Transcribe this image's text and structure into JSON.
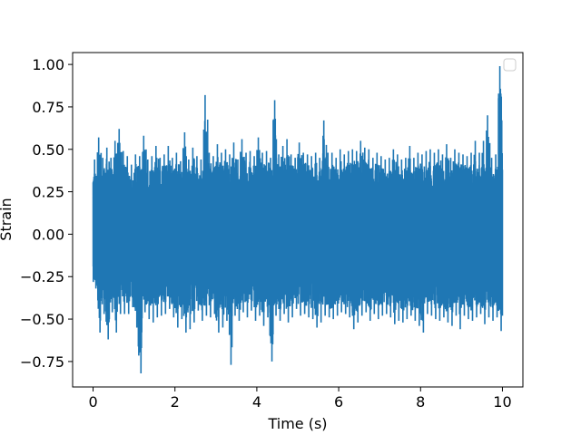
{
  "chart_data": {
    "type": "line",
    "title": "",
    "xlabel": "Time (s)",
    "ylabel": "Strain",
    "xlim": [
      -0.5,
      10.5
    ],
    "ylim": [
      -0.9,
      1.07
    ],
    "xticks": [
      0,
      2,
      4,
      6,
      8,
      10
    ],
    "xtick_labels": [
      "0",
      "2",
      "4",
      "6",
      "8",
      "10"
    ],
    "yticks": [
      -0.75,
      -0.5,
      -0.25,
      0.0,
      0.25,
      0.5,
      0.75,
      1.0
    ],
    "ytick_labels": [
      "−0.75",
      "−0.50",
      "−0.25",
      "0.00",
      "0.25",
      "0.50",
      "0.75",
      "1.00"
    ],
    "grid": false,
    "legend": {
      "placement": "upper right",
      "entries": []
    },
    "colors": {
      "series": "#1f77b4",
      "axes": "#000000",
      "background": "#ffffff"
    },
    "series": [
      {
        "x": [
          0.0,
          0.1,
          0.2,
          0.3,
          0.4,
          0.5,
          0.6,
          0.7,
          0.8,
          0.9,
          1.0,
          1.1,
          1.2,
          1.3,
          1.4,
          1.5,
          1.6,
          1.7,
          1.8,
          1.9,
          2.0,
          2.1,
          2.2,
          2.3,
          2.4,
          2.5,
          2.6,
          2.7,
          2.8,
          2.9,
          3.0,
          3.1,
          3.2,
          3.3,
          3.4,
          3.5,
          3.6,
          3.7,
          3.8,
          3.9,
          4.0,
          4.1,
          4.2,
          4.3,
          4.4,
          4.5,
          4.6,
          4.7,
          4.8,
          4.9,
          5.0,
          5.1,
          5.2,
          5.3,
          5.4,
          5.5,
          5.6,
          5.7,
          5.8,
          5.9,
          6.0,
          6.1,
          6.2,
          6.3,
          6.4,
          6.5,
          6.6,
          6.7,
          6.8,
          6.9,
          7.0,
          7.1,
          7.2,
          7.3,
          7.4,
          7.5,
          7.6,
          7.7,
          7.8,
          7.9,
          8.0,
          8.1,
          8.2,
          8.3,
          8.4,
          8.5,
          8.6,
          8.7,
          8.8,
          8.9,
          9.0,
          9.1,
          9.2,
          9.3,
          9.4,
          9.5,
          9.6,
          9.7,
          9.8,
          9.9,
          10.0
        ],
        "max": [
          0.44,
          0.57,
          0.45,
          0.51,
          0.45,
          0.55,
          0.62,
          0.49,
          0.46,
          0.41,
          0.47,
          0.46,
          0.58,
          0.44,
          0.46,
          0.52,
          0.45,
          0.47,
          0.52,
          0.45,
          0.48,
          0.43,
          0.6,
          0.44,
          0.51,
          0.46,
          0.44,
          0.82,
          0.48,
          0.46,
          0.53,
          0.48,
          0.5,
          0.47,
          0.54,
          0.44,
          0.56,
          0.48,
          0.49,
          0.46,
          0.57,
          0.48,
          0.49,
          0.45,
          0.79,
          0.47,
          0.52,
          0.56,
          0.47,
          0.45,
          0.54,
          0.48,
          0.47,
          0.46,
          0.48,
          0.45,
          0.67,
          0.48,
          0.48,
          0.45,
          0.5,
          0.47,
          0.49,
          0.5,
          0.49,
          0.55,
          0.51,
          0.5,
          0.45,
          0.48,
          0.46,
          0.44,
          0.45,
          0.5,
          0.47,
          0.44,
          0.45,
          0.52,
          0.45,
          0.48,
          0.47,
          0.49,
          0.5,
          0.48,
          0.5,
          0.47,
          0.53,
          0.45,
          0.5,
          0.48,
          0.47,
          0.46,
          0.48,
          0.55,
          0.48,
          0.55,
          0.7,
          0.45,
          0.47,
          0.99,
          0.38
        ],
        "min": [
          -0.32,
          -0.58,
          -0.47,
          -0.62,
          -0.46,
          -0.58,
          -0.47,
          -0.47,
          -0.47,
          -0.43,
          -0.55,
          -0.82,
          -0.46,
          -0.5,
          -0.52,
          -0.49,
          -0.48,
          -0.47,
          -0.44,
          -0.49,
          -0.55,
          -0.5,
          -0.58,
          -0.56,
          -0.52,
          -0.45,
          -0.51,
          -0.48,
          -0.49,
          -0.47,
          -0.58,
          -0.55,
          -0.51,
          -0.77,
          -0.48,
          -0.51,
          -0.46,
          -0.49,
          -0.45,
          -0.51,
          -0.48,
          -0.54,
          -0.49,
          -0.75,
          -0.48,
          -0.51,
          -0.47,
          -0.52,
          -0.49,
          -0.44,
          -0.48,
          -0.47,
          -0.49,
          -0.5,
          -0.55,
          -0.52,
          -0.48,
          -0.49,
          -0.5,
          -0.48,
          -0.46,
          -0.47,
          -0.49,
          -0.56,
          -0.52,
          -0.48,
          -0.46,
          -0.51,
          -0.47,
          -0.5,
          -0.48,
          -0.47,
          -0.49,
          -0.53,
          -0.51,
          -0.52,
          -0.5,
          -0.48,
          -0.51,
          -0.54,
          -0.58,
          -0.47,
          -0.48,
          -0.5,
          -0.51,
          -0.49,
          -0.52,
          -0.54,
          -0.48,
          -0.56,
          -0.48,
          -0.5,
          -0.51,
          -0.49,
          -0.47,
          -0.53,
          -0.49,
          -0.51,
          -0.49,
          -0.57,
          -0.48
        ]
      }
    ]
  }
}
